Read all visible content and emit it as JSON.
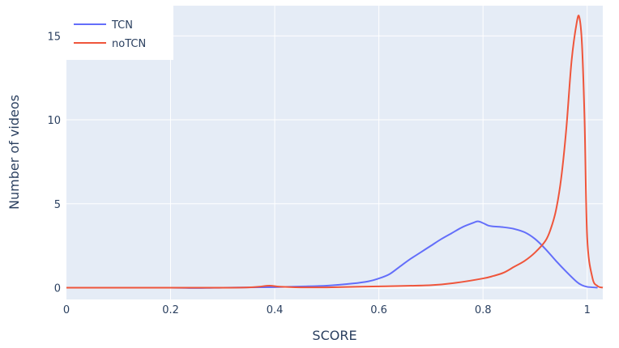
{
  "chart_data": {
    "type": "line",
    "title": "",
    "xlabel": "SCORE",
    "ylabel": "Number of videos",
    "xlim": [
      0,
      1.03
    ],
    "ylim": [
      -0.7,
      16.8
    ],
    "grid": true,
    "legend_position": "top-left",
    "x_ticks": [
      0,
      0.2,
      0.4,
      0.6,
      0.8,
      1
    ],
    "x_tick_labels": [
      "0",
      "0.2",
      "0.4",
      "0.6",
      "0.8",
      "1"
    ],
    "y_ticks": [
      0,
      5,
      10,
      15
    ],
    "y_tick_labels": [
      "0",
      "5",
      "10",
      "15"
    ],
    "colors": {
      "plot_bg": "#e5ecf6",
      "grid": "#ffffff",
      "text": "#2a3f5f"
    },
    "series": [
      {
        "name": "TCN",
        "color": "#636efa",
        "x": [
          0,
          0.1,
          0.2,
          0.25,
          0.3,
          0.35,
          0.4,
          0.45,
          0.5,
          0.55,
          0.58,
          0.6,
          0.62,
          0.64,
          0.66,
          0.68,
          0.7,
          0.72,
          0.74,
          0.76,
          0.78,
          0.79,
          0.8,
          0.81,
          0.82,
          0.84,
          0.86,
          0.88,
          0.9,
          0.92,
          0.94,
          0.96,
          0.98,
          0.99,
          1.0,
          1.02
        ],
        "y": [
          0,
          0,
          0,
          -0.02,
          0,
          0.02,
          0.03,
          0.07,
          0.12,
          0.25,
          0.38,
          0.55,
          0.8,
          1.25,
          1.7,
          2.1,
          2.5,
          2.9,
          3.25,
          3.6,
          3.85,
          3.95,
          3.85,
          3.7,
          3.65,
          3.6,
          3.5,
          3.3,
          2.9,
          2.3,
          1.6,
          0.95,
          0.35,
          0.15,
          0.05,
          0
        ]
      },
      {
        "name": "noTCN",
        "color": "#ef553b",
        "x": [
          0,
          0.1,
          0.2,
          0.3,
          0.35,
          0.37,
          0.39,
          0.41,
          0.45,
          0.5,
          0.6,
          0.7,
          0.75,
          0.8,
          0.82,
          0.84,
          0.86,
          0.88,
          0.9,
          0.92,
          0.93,
          0.94,
          0.95,
          0.96,
          0.97,
          0.98,
          0.985,
          0.99,
          0.995,
          1.0,
          1.01,
          1.02,
          1.03
        ],
        "y": [
          0,
          0,
          0,
          0,
          0.02,
          0.06,
          0.12,
          0.06,
          0.02,
          0.02,
          0.08,
          0.15,
          0.3,
          0.55,
          0.7,
          0.9,
          1.25,
          1.6,
          2.1,
          2.8,
          3.5,
          4.6,
          6.5,
          9.5,
          13.5,
          15.8,
          16.1,
          14.5,
          10.0,
          3.0,
          0.6,
          0.1,
          0
        ]
      }
    ]
  }
}
